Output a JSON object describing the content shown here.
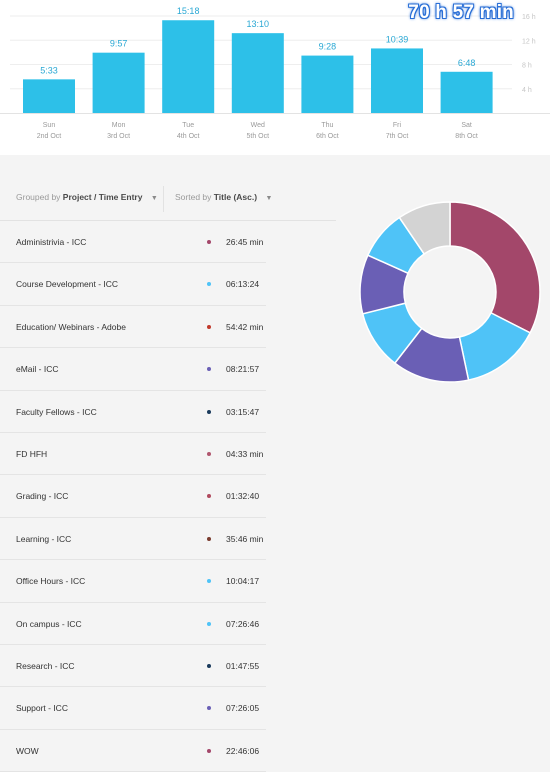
{
  "summary": {
    "total": "70 h 57 min"
  },
  "chart_data": {
    "type": "bar",
    "days": [
      "Sun",
      "Mon",
      "Tue",
      "Wed",
      "Thu",
      "Fri",
      "Sat"
    ],
    "dates": [
      "2nd Oct",
      "3rd Oct",
      "4th Oct",
      "5th Oct",
      "6th Oct",
      "7th Oct",
      "8th Oct"
    ],
    "value_labels": [
      "5:33",
      "9:57",
      "15:18",
      "13:10",
      "9:28",
      "10:39",
      "6:48"
    ],
    "values_hours": [
      5.55,
      9.95,
      15.3,
      13.17,
      9.47,
      10.65,
      6.8
    ],
    "y_ticks": [
      "16 h",
      "12 h",
      "8 h",
      "4 h"
    ],
    "y_tick_values": [
      16,
      12,
      8,
      4
    ],
    "ylim": [
      0,
      16
    ],
    "bar_color": "#2dc0e8",
    "grid": true
  },
  "controls": {
    "group_prefix": "Grouped by",
    "group_value": "Project / Time Entry",
    "sort_prefix": "Sorted by",
    "sort_value": "Title (Asc.)"
  },
  "entries": [
    {
      "name": "Administrivia - ICC",
      "duration": "26:45 min",
      "color": "#a3476a"
    },
    {
      "name": "Course Development - ICC",
      "duration": "06:13:24",
      "color": "#4fc3f7"
    },
    {
      "name": "Education/ Webinars - Adobe",
      "duration": "54:42 min",
      "color": "#c0392b"
    },
    {
      "name": "eMail - ICC",
      "duration": "08:21:57",
      "color": "#6a5fb5"
    },
    {
      "name": "Faculty Fellows - ICC",
      "duration": "03:15:47",
      "color": "#1a3a5c"
    },
    {
      "name": "FD HFH",
      "duration": "04:33 min",
      "color": "#b0566e"
    },
    {
      "name": "Grading - ICC",
      "duration": "01:32:40",
      "color": "#b04a5e"
    },
    {
      "name": "Learning - ICC",
      "duration": "35:46 min",
      "color": "#7a3b2e"
    },
    {
      "name": "Office Hours - ICC",
      "duration": "10:04:17",
      "color": "#4fc3f7"
    },
    {
      "name": "On campus - ICC",
      "duration": "07:26:46",
      "color": "#4fc3f7"
    },
    {
      "name": "Research - ICC",
      "duration": "01:47:55",
      "color": "#1a3a5c"
    },
    {
      "name": "Support - ICC",
      "duration": "07:26:05",
      "color": "#6a5fb5"
    },
    {
      "name": "WOW",
      "duration": "22:46:06",
      "color": "#a3476a"
    }
  ],
  "donut": {
    "segments": [
      {
        "value": 32.5,
        "color": "#a3476a"
      },
      {
        "value": 14.2,
        "color": "#4fc3f7"
      },
      {
        "value": 13.8,
        "color": "#6a5fb5"
      },
      {
        "value": 10.6,
        "color": "#4fc3f7"
      },
      {
        "value": 10.6,
        "color": "#6a5fb5"
      },
      {
        "value": 8.8,
        "color": "#4fc3f7"
      },
      {
        "value": 9.5,
        "color": "#d3d3d3"
      }
    ]
  }
}
